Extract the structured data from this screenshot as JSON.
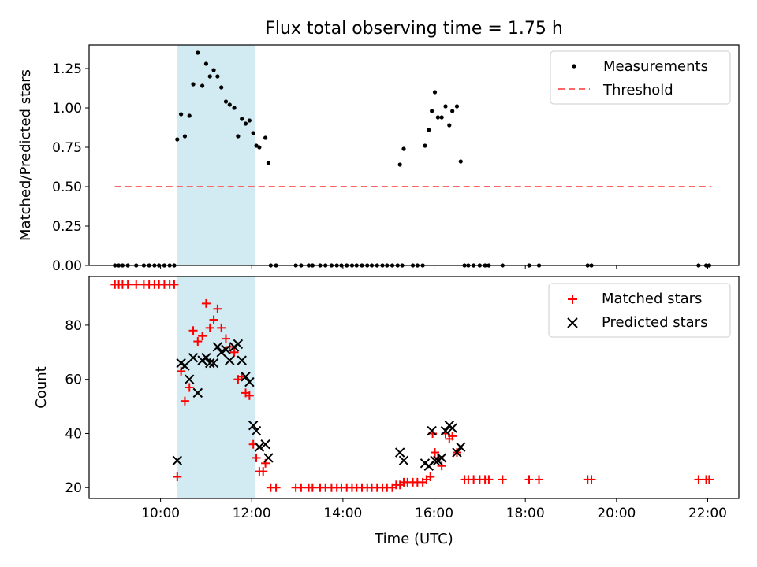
{
  "chart_data": [
    {
      "type": "scatter",
      "title": "Flux total observing time = 1.75 h",
      "xlabel": "",
      "ylabel": "Matched/Predicted stars",
      "xlim": [
        "08:26",
        "22:41"
      ],
      "ylim": [
        0,
        1.4
      ],
      "yticks": [
        0,
        0.25,
        0.5,
        0.75,
        1.0,
        1.25
      ],
      "ytick_labels": [
        "0.00",
        "0.25",
        "0.50",
        "0.75",
        "1.00",
        "1.25"
      ],
      "legend_position": "top-right",
      "highlight_span": [
        "10:22",
        "12:05"
      ],
      "highlight_color": "#add8e6",
      "series": [
        {
          "name": "Measurements",
          "color": "#000000",
          "marker": "dot",
          "points": [
            [
              "09:00",
              0
            ],
            [
              "09:05",
              0
            ],
            [
              "09:10",
              0
            ],
            [
              "09:17",
              0
            ],
            [
              "09:28",
              0
            ],
            [
              "09:38",
              0
            ],
            [
              "09:45",
              0
            ],
            [
              "09:52",
              0
            ],
            [
              "09:58",
              0
            ],
            [
              "10:05",
              0
            ],
            [
              "10:12",
              0
            ],
            [
              "10:18",
              0
            ],
            [
              "10:22",
              0.8
            ],
            [
              "10:27",
              0.96
            ],
            [
              "10:32",
              0.82
            ],
            [
              "10:38",
              0.95
            ],
            [
              "10:43",
              1.15
            ],
            [
              "10:49",
              1.35
            ],
            [
              "10:55",
              1.14
            ],
            [
              "11:00",
              1.28
            ],
            [
              "11:05",
              1.2
            ],
            [
              "11:10",
              1.24
            ],
            [
              "11:15",
              1.2
            ],
            [
              "11:20",
              1.13
            ],
            [
              "11:26",
              1.04
            ],
            [
              "11:31",
              1.02
            ],
            [
              "11:37",
              1.0
            ],
            [
              "11:42",
              0.82
            ],
            [
              "11:47",
              0.93
            ],
            [
              "11:52",
              0.9
            ],
            [
              "11:57",
              0.92
            ],
            [
              "12:02",
              0.84
            ],
            [
              "12:06",
              0.76
            ],
            [
              "12:10",
              0.75
            ],
            [
              "12:18",
              0.81
            ],
            [
              "12:22",
              0.65
            ],
            [
              "12:25",
              0
            ],
            [
              "12:32",
              0
            ],
            [
              "12:58",
              0
            ],
            [
              "13:05",
              0
            ],
            [
              "13:15",
              0
            ],
            [
              "13:20",
              0
            ],
            [
              "13:30",
              0
            ],
            [
              "13:37",
              0
            ],
            [
              "13:45",
              0
            ],
            [
              "13:52",
              0
            ],
            [
              "13:58",
              0
            ],
            [
              "14:05",
              0
            ],
            [
              "14:12",
              0
            ],
            [
              "14:18",
              0
            ],
            [
              "14:25",
              0
            ],
            [
              "14:32",
              0
            ],
            [
              "14:38",
              0
            ],
            [
              "14:45",
              0
            ],
            [
              "14:52",
              0
            ],
            [
              "14:58",
              0
            ],
            [
              "15:05",
              0
            ],
            [
              "15:12",
              0
            ],
            [
              "15:18",
              0
            ],
            [
              "15:32",
              0
            ],
            [
              "15:38",
              0
            ],
            [
              "15:45",
              0
            ],
            [
              "15:15",
              0.64
            ],
            [
              "15:20",
              0.74
            ],
            [
              "15:48",
              0.76
            ],
            [
              "15:53",
              0.86
            ],
            [
              "15:57",
              0.98
            ],
            [
              "16:01",
              1.1
            ],
            [
              "16:05",
              0.94
            ],
            [
              "16:10",
              0.94
            ],
            [
              "16:15",
              1.01
            ],
            [
              "16:20",
              0.89
            ],
            [
              "16:24",
              0.98
            ],
            [
              "16:30",
              1.01
            ],
            [
              "16:35",
              0.66
            ],
            [
              "16:40",
              0
            ],
            [
              "16:45",
              0
            ],
            [
              "16:52",
              0
            ],
            [
              "17:00",
              0
            ],
            [
              "17:07",
              0
            ],
            [
              "17:12",
              0
            ],
            [
              "17:30",
              0
            ],
            [
              "18:05",
              0
            ],
            [
              "18:18",
              0
            ],
            [
              "19:22",
              0
            ],
            [
              "19:27",
              0
            ],
            [
              "21:48",
              0
            ],
            [
              "21:58",
              0
            ],
            [
              "22:02",
              0
            ]
          ]
        },
        {
          "name": "Threshold",
          "color": "#ff6666",
          "line_style": "dashed",
          "x_range": [
            "09:00",
            "22:05"
          ],
          "value": 0.5
        }
      ]
    },
    {
      "type": "scatter",
      "title": "",
      "xlabel": "Time (UTC)",
      "ylabel": "Count",
      "xlim": [
        "08:26",
        "22:41"
      ],
      "ylim": [
        16,
        98
      ],
      "yticks": [
        20,
        40,
        60,
        80
      ],
      "xticks": [
        "10:00",
        "12:00",
        "14:00",
        "16:00",
        "18:00",
        "20:00",
        "22:00"
      ],
      "legend_position": "top-right",
      "highlight_span": [
        "10:22",
        "12:05"
      ],
      "highlight_color": "#add8e6",
      "series": [
        {
          "name": "Matched stars",
          "color": "#ff0000",
          "marker": "plus",
          "points": [
            [
              "09:00",
              95
            ],
            [
              "09:05",
              95
            ],
            [
              "09:10",
              95
            ],
            [
              "09:17",
              95
            ],
            [
              "09:28",
              95
            ],
            [
              "09:38",
              95
            ],
            [
              "09:45",
              95
            ],
            [
              "09:52",
              95
            ],
            [
              "09:58",
              95
            ],
            [
              "10:05",
              95
            ],
            [
              "10:12",
              95
            ],
            [
              "10:18",
              95
            ],
            [
              "10:22",
              24
            ],
            [
              "10:27",
              63
            ],
            [
              "10:32",
              52
            ],
            [
              "10:38",
              57
            ],
            [
              "10:43",
              78
            ],
            [
              "10:49",
              74
            ],
            [
              "10:55",
              76
            ],
            [
              "11:00",
              88
            ],
            [
              "11:05",
              79
            ],
            [
              "11:10",
              82
            ],
            [
              "11:15",
              86
            ],
            [
              "11:20",
              79
            ],
            [
              "11:26",
              75
            ],
            [
              "11:31",
              72
            ],
            [
              "11:37",
              70
            ],
            [
              "11:42",
              60
            ],
            [
              "11:47",
              61
            ],
            [
              "11:52",
              55
            ],
            [
              "11:57",
              54
            ],
            [
              "12:02",
              36
            ],
            [
              "12:06",
              31
            ],
            [
              "12:10",
              26
            ],
            [
              "12:15",
              26
            ],
            [
              "12:18",
              29
            ],
            [
              "12:25",
              20
            ],
            [
              "12:32",
              20
            ],
            [
              "12:58",
              20
            ],
            [
              "13:05",
              20
            ],
            [
              "13:15",
              20
            ],
            [
              "13:20",
              20
            ],
            [
              "13:30",
              20
            ],
            [
              "13:37",
              20
            ],
            [
              "13:45",
              20
            ],
            [
              "13:52",
              20
            ],
            [
              "13:58",
              20
            ],
            [
              "14:05",
              20
            ],
            [
              "14:12",
              20
            ],
            [
              "14:18",
              20
            ],
            [
              "14:25",
              20
            ],
            [
              "14:32",
              20
            ],
            [
              "14:38",
              20
            ],
            [
              "14:45",
              20
            ],
            [
              "14:52",
              20
            ],
            [
              "14:58",
              20
            ],
            [
              "15:05",
              20
            ],
            [
              "15:10",
              21
            ],
            [
              "15:15",
              21
            ],
            [
              "15:20",
              22
            ],
            [
              "15:25",
              22
            ],
            [
              "15:32",
              22
            ],
            [
              "15:38",
              22
            ],
            [
              "15:45",
              22
            ],
            [
              "15:50",
              23
            ],
            [
              "15:55",
              24
            ],
            [
              "15:58",
              40
            ],
            [
              "16:01",
              33
            ],
            [
              "16:05",
              31
            ],
            [
              "16:10",
              28
            ],
            [
              "16:15",
              40
            ],
            [
              "16:20",
              38
            ],
            [
              "16:24",
              39
            ],
            [
              "16:30",
              33
            ],
            [
              "16:40",
              23
            ],
            [
              "16:45",
              23
            ],
            [
              "16:52",
              23
            ],
            [
              "17:00",
              23
            ],
            [
              "17:07",
              23
            ],
            [
              "17:12",
              23
            ],
            [
              "17:30",
              23
            ],
            [
              "18:05",
              23
            ],
            [
              "18:18",
              23
            ],
            [
              "19:22",
              23
            ],
            [
              "19:27",
              23
            ],
            [
              "21:48",
              23
            ],
            [
              "21:58",
              23
            ],
            [
              "22:02",
              23
            ]
          ]
        },
        {
          "name": "Predicted stars",
          "color": "#000000",
          "marker": "x",
          "points": [
            [
              "10:22",
              30
            ],
            [
              "10:27",
              66
            ],
            [
              "10:32",
              65
            ],
            [
              "10:38",
              60
            ],
            [
              "10:43",
              68
            ],
            [
              "10:49",
              55
            ],
            [
              "10:55",
              67
            ],
            [
              "11:00",
              68
            ],
            [
              "11:05",
              66
            ],
            [
              "11:10",
              66
            ],
            [
              "11:15",
              72
            ],
            [
              "11:20",
              70
            ],
            [
              "11:26",
              71
            ],
            [
              "11:31",
              67
            ],
            [
              "11:37",
              72
            ],
            [
              "11:42",
              73
            ],
            [
              "11:47",
              67
            ],
            [
              "11:52",
              61
            ],
            [
              "11:57",
              59
            ],
            [
              "12:02",
              43
            ],
            [
              "12:06",
              41
            ],
            [
              "12:10",
              35
            ],
            [
              "12:18",
              36
            ],
            [
              "12:22",
              31
            ],
            [
              "15:15",
              33
            ],
            [
              "15:20",
              30
            ],
            [
              "15:48",
              29
            ],
            [
              "15:53",
              28
            ],
            [
              "15:57",
              41
            ],
            [
              "16:01",
              30
            ],
            [
              "16:05",
              30
            ],
            [
              "16:10",
              31
            ],
            [
              "16:15",
              41
            ],
            [
              "16:20",
              43
            ],
            [
              "16:24",
              42
            ],
            [
              "16:30",
              33
            ],
            [
              "16:35",
              35
            ]
          ]
        }
      ]
    }
  ]
}
